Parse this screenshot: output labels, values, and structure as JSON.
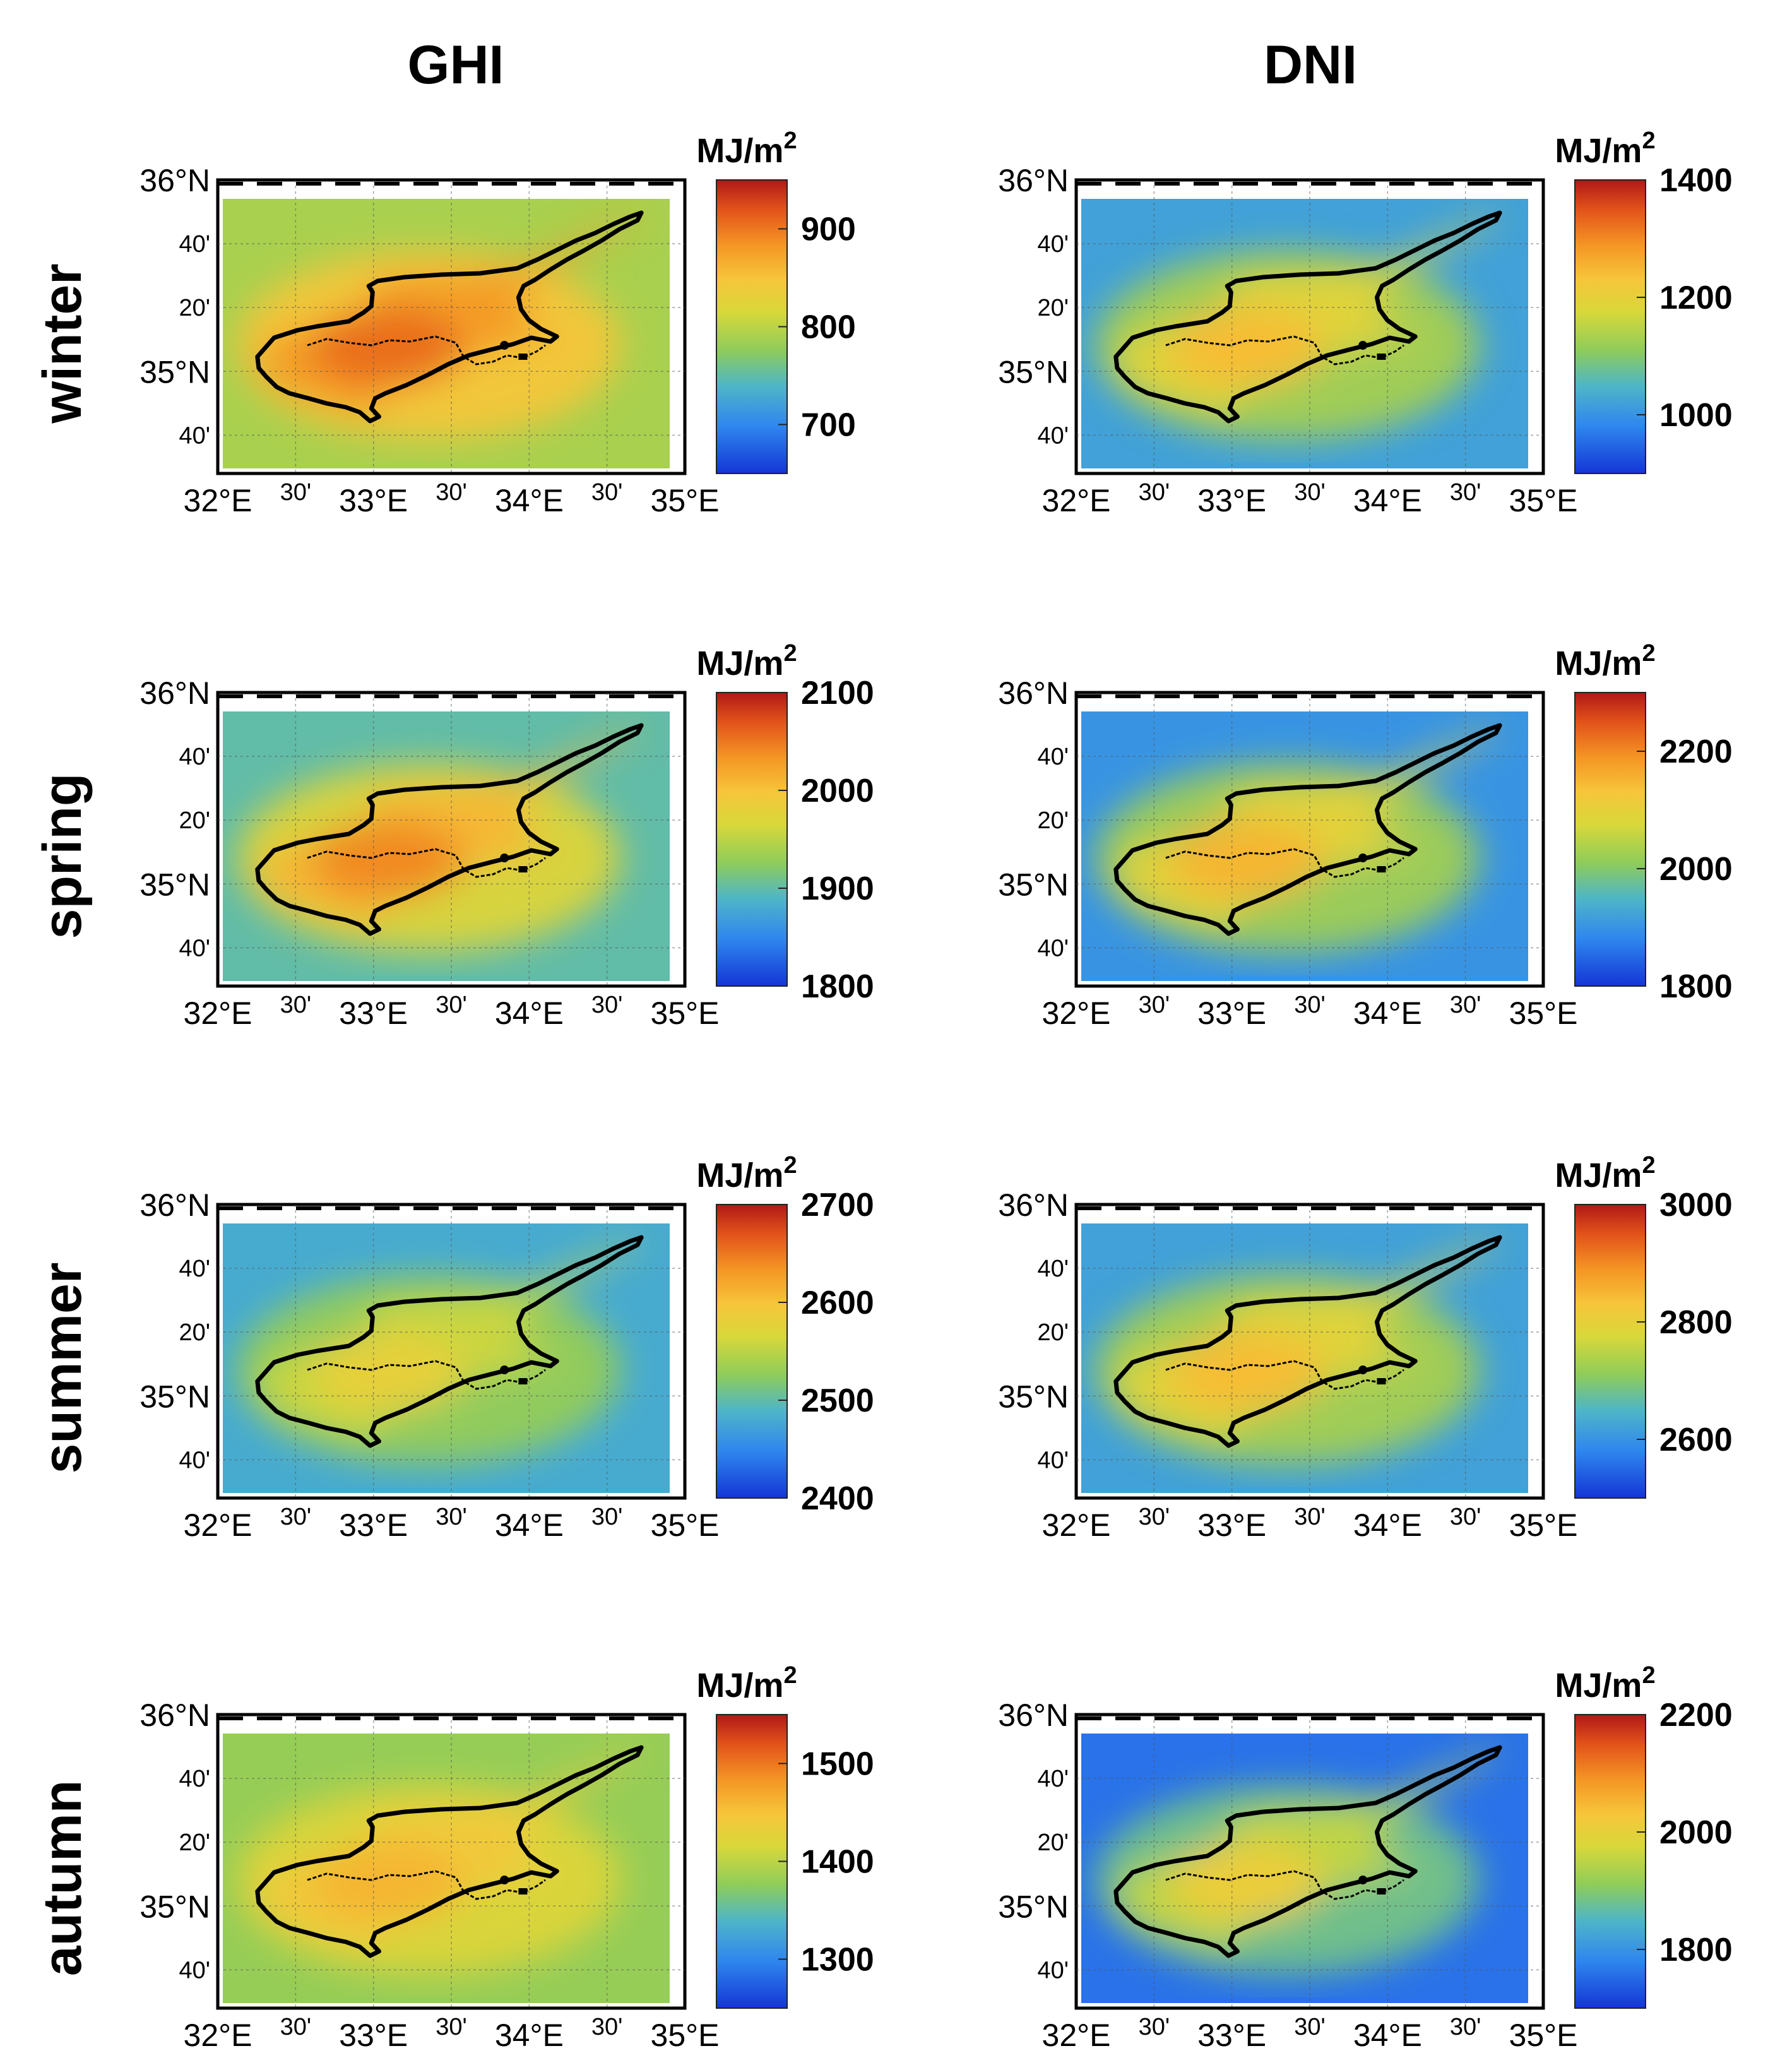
{
  "columns": [
    {
      "id": "ghi",
      "title": "GHI"
    },
    {
      "id": "dni",
      "title": "DNI"
    }
  ],
  "seasons": [
    {
      "id": "winter",
      "label": "winter"
    },
    {
      "id": "spring",
      "label": "spring"
    },
    {
      "id": "summer",
      "label": "summer"
    },
    {
      "id": "autumn",
      "label": "autumn"
    }
  ],
  "axes": {
    "lon_ticks": [
      "32°E",
      "30'",
      "33°E",
      "30'",
      "34°E",
      "30'",
      "35°E"
    ],
    "lat_ticks": [
      "36°N",
      "40'",
      "20'",
      "35°N",
      "40'"
    ]
  },
  "colorbar_unit": {
    "base": "MJ/m",
    "exponent": "2"
  },
  "colors": {
    "sea_low": "#2f6fe0",
    "land_high": "#e0641c",
    "coastline": "#000000",
    "frame": "#000000"
  },
  "chart_data": [
    {
      "type": "heatmap",
      "title": "GHI",
      "season": "winter",
      "unit": "MJ/m2",
      "crange": [
        650,
        950
      ],
      "ticks": [
        700,
        800,
        900
      ],
      "sea_value": 790,
      "land_value": 905
    },
    {
      "type": "heatmap",
      "title": "DNI",
      "season": "winter",
      "unit": "MJ/m2",
      "crange": [
        900,
        1400
      ],
      "ticks": [
        1000,
        1200,
        1400
      ],
      "sea_value": 1020,
      "land_value": 1240
    },
    {
      "type": "heatmap",
      "title": "GHI",
      "season": "spring",
      "unit": "MJ/m2",
      "crange": [
        1800,
        2100
      ],
      "ticks": [
        1800,
        1900,
        2000,
        2100
      ],
      "sea_value": 1900,
      "land_value": 2040
    },
    {
      "type": "heatmap",
      "title": "DNI",
      "season": "spring",
      "unit": "MJ/m2",
      "crange": [
        1800,
        2300
      ],
      "ticks": [
        1800,
        2000,
        2200
      ],
      "sea_value": 1900,
      "land_value": 2150
    },
    {
      "type": "heatmap",
      "title": "GHI",
      "season": "summer",
      "unit": "MJ/m2",
      "crange": [
        2400,
        2700
      ],
      "ticks": [
        2400,
        2500,
        2600,
        2700
      ],
      "sea_value": 2480,
      "land_value": 2580
    },
    {
      "type": "heatmap",
      "title": "DNI",
      "season": "summer",
      "unit": "MJ/m2",
      "crange": [
        2500,
        3000
      ],
      "ticks": [
        2600,
        2800,
        3000
      ],
      "sea_value": 2620,
      "land_value": 2840
    },
    {
      "type": "heatmap",
      "title": "GHI",
      "season": "autumn",
      "unit": "MJ/m2",
      "crange": [
        1250,
        1550
      ],
      "ticks": [
        1300,
        1400,
        1500
      ],
      "sea_value": 1380,
      "land_value": 1460
    },
    {
      "type": "heatmap",
      "title": "DNI",
      "season": "autumn",
      "unit": "MJ/m2",
      "crange": [
        1700,
        2200
      ],
      "ticks": [
        1800,
        2000,
        2200
      ],
      "sea_value": 1760,
      "land_value": 2010
    }
  ]
}
